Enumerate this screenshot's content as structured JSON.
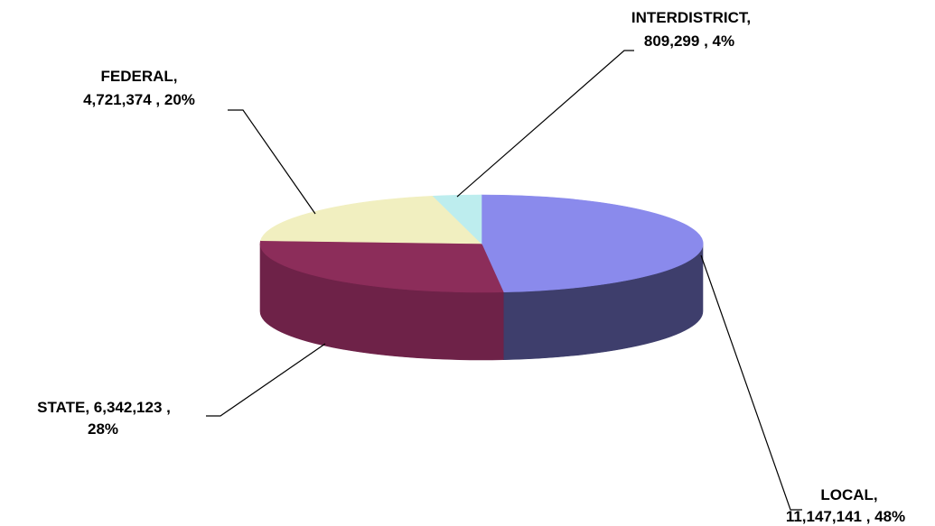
{
  "chart_data": {
    "type": "pie",
    "title": "",
    "three_d": true,
    "slices": [
      {
        "name": "LOCAL",
        "value": 11147141,
        "percent": 48,
        "label_line1": "LOCAL,",
        "label_line2": "11,147,141 , 48%",
        "color": "#8A8AEC",
        "side_color": "#3E3E6C"
      },
      {
        "name": "STATE",
        "value": 6342123,
        "percent": 28,
        "label_line1": "STATE,  6,342,123 ,",
        "label_line2": "28%",
        "color": "#8C2D5A",
        "side_color": "#6E2248"
      },
      {
        "name": "FEDERAL",
        "value": 4721374,
        "percent": 20,
        "label_line1": "FEDERAL,",
        "label_line2": "4,721,374 , 20%",
        "color": "#F1EFC0",
        "side_color": "#C9C79A"
      },
      {
        "name": "INTERDISTRICT",
        "value": 809299,
        "percent": 4,
        "label_line1": "INTERDISTRICT,",
        "label_line2": "809,299 , 4%",
        "color": "#BDEDEE",
        "side_color": "#8FC4C5"
      }
    ]
  }
}
